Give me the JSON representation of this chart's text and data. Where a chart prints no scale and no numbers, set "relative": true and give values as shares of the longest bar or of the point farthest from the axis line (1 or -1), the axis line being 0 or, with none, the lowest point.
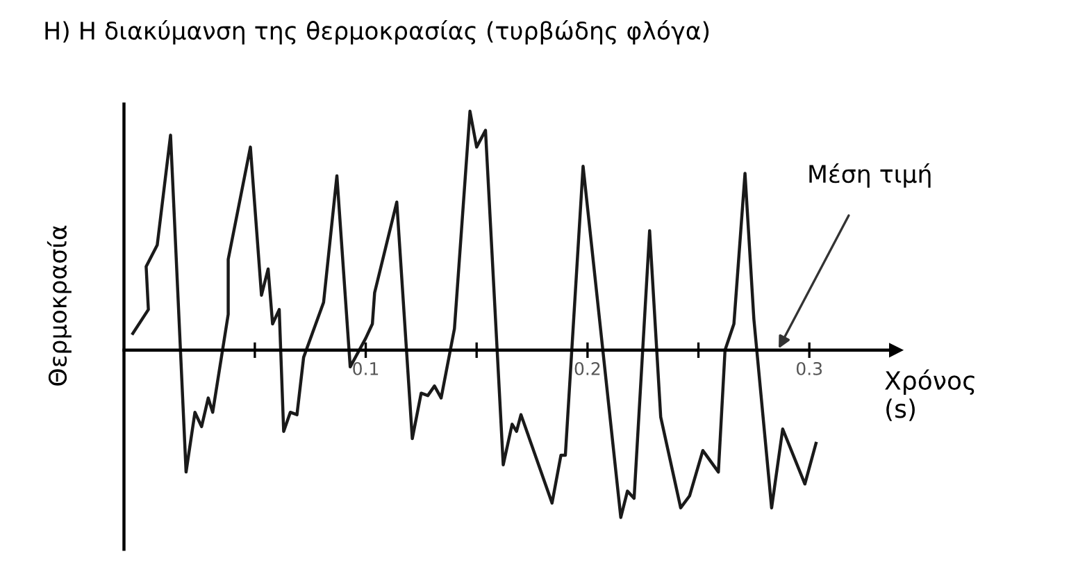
{
  "chart_data": {
    "type": "line",
    "title": "Η) Η διακύμανση της θερμοκρασίας (τυρβώδης φλόγα)",
    "xlabel": "Χρόνος\n(s)",
    "ylabel": "Θερμοκρασία",
    "relative": true,
    "xlim": [
      -0.009,
      0.339
    ],
    "xticks": [
      {
        "value": 0.05,
        "label": null
      },
      {
        "value": 0.1,
        "label": "0.1"
      },
      {
        "value": 0.15,
        "label": null
      },
      {
        "value": 0.2,
        "label": "0.2"
      },
      {
        "value": 0.25,
        "label": null
      },
      {
        "value": 0.3,
        "label": "0.3"
      }
    ],
    "tick_labels": "x",
    "grid": false,
    "legend": false,
    "marker": "none",
    "line_style": "solid",
    "annotations": [
      "Μέση τιμή"
    ],
    "series": [
      {
        "color": "#1a1a1a",
        "x": [
          -0.005,
          0.002,
          0.001,
          0.006,
          0.012,
          0.019,
          0.023,
          0.026,
          0.029,
          0.031,
          0.038,
          0.038,
          0.048,
          0.053,
          0.056,
          0.058,
          0.061,
          0.063,
          0.066,
          0.069,
          0.072,
          0.081,
          0.087,
          0.093,
          0.1,
          0.103,
          0.104,
          0.114,
          0.121,
          0.125,
          0.128,
          0.131,
          0.134,
          0.14,
          0.147,
          0.15,
          0.154,
          0.162,
          0.166,
          0.168,
          0.17,
          0.184,
          0.188,
          0.19,
          0.198,
          0.215,
          0.218,
          0.221,
          0.228,
          0.233,
          0.242,
          0.246,
          0.252,
          0.259,
          0.262,
          0.266,
          0.271,
          0.275,
          0.283,
          0.288,
          0.298,
          0.303
        ],
        "values": [
          0.07,
          0.17,
          0.35,
          0.44,
          0.9,
          -0.51,
          -0.26,
          -0.32,
          -0.2,
          -0.26,
          0.15,
          0.38,
          0.85,
          0.23,
          0.34,
          0.11,
          0.17,
          -0.34,
          -0.26,
          -0.27,
          -0.03,
          0.2,
          0.73,
          -0.07,
          0.05,
          0.11,
          0.24,
          0.62,
          -0.37,
          -0.18,
          -0.19,
          -0.15,
          -0.2,
          0.09,
          1.0,
          0.85,
          0.92,
          -0.48,
          -0.31,
          -0.34,
          -0.27,
          -0.64,
          -0.44,
          -0.44,
          0.77,
          -0.7,
          -0.59,
          -0.62,
          0.5,
          -0.28,
          -0.66,
          -0.61,
          -0.42,
          -0.51,
          0.0,
          0.11,
          0.74,
          0.13,
          -0.66,
          -0.33,
          -0.56,
          -0.39
        ]
      }
    ]
  }
}
